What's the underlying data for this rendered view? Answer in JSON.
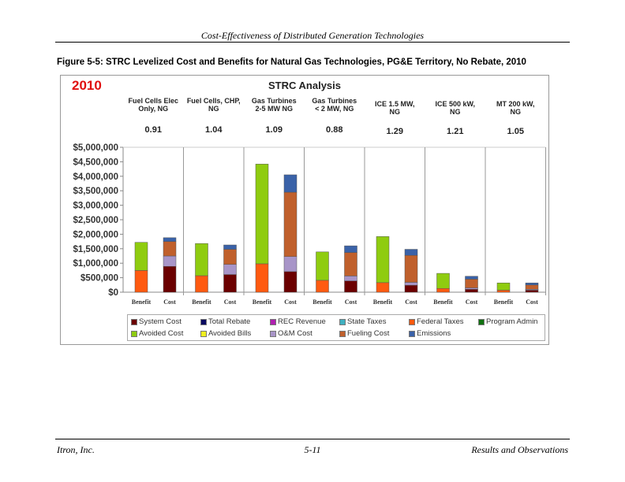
{
  "header": "Cost-Effectiveness of Distributed Generation Technologies",
  "caption": "Figure 5-5:  STRC Levelized Cost and Benefits for Natural Gas Technologies, PG&E Territory, No Rebate, 2010",
  "footer": {
    "left": "Itron, Inc.",
    "center": "5-11",
    "right": "Results and Observations"
  },
  "chart_data": {
    "type": "bar",
    "stacked": true,
    "title": "STRC Analysis",
    "year_label": "2010",
    "ylim": [
      0,
      5000000
    ],
    "yticks": [
      "$0",
      "$500,000",
      "$1,000,000",
      "$1,500,000",
      "$2,000,000",
      "$2,500,000",
      "$3,000,000",
      "$3,500,000",
      "$4,000,000",
      "$4,500,000",
      "$5,000,000"
    ],
    "grid": false,
    "legend_position": "bottom",
    "groups": [
      {
        "label": [
          "Fuel Cells Elec",
          "Only, NG"
        ],
        "ratio": "0.91"
      },
      {
        "label": [
          "Fuel Cells, CHP,",
          "NG"
        ],
        "ratio": "1.04"
      },
      {
        "label": [
          "Gas Turbines",
          "2-5 MW NG"
        ],
        "ratio": "1.09"
      },
      {
        "label": [
          "Gas Turbines",
          "< 2 MW, NG"
        ],
        "ratio": "0.88"
      },
      {
        "label": [
          "ICE 1.5 MW,",
          "NG"
        ],
        "ratio": "1.29"
      },
      {
        "label": [
          "ICE 500 kW,",
          "NG"
        ],
        "ratio": "1.21"
      },
      {
        "label": [
          "MT 200 kW,",
          "NG"
        ],
        "ratio": "1.05"
      }
    ],
    "bar_labels": [
      "Benefit",
      "Cost"
    ],
    "legend": [
      {
        "name": "System Cost",
        "color": "#6b0000"
      },
      {
        "name": "Total Rebate",
        "color": "#0a0a60"
      },
      {
        "name": "REC Revenue",
        "color": "#b020b0"
      },
      {
        "name": "State Taxes",
        "color": "#40b0c0"
      },
      {
        "name": "Federal Taxes",
        "color": "#ff5a10"
      },
      {
        "name": "Program Admin",
        "color": "#107010"
      },
      {
        "name": "Avoided Cost",
        "color": "#8fcc10"
      },
      {
        "name": "Avoided Bills",
        "color": "#f0f020"
      },
      {
        "name": "O&M Cost",
        "color": "#a895c8"
      },
      {
        "name": "Fueling Cost",
        "color": "#c0602c"
      },
      {
        "name": "Emissions",
        "color": "#3a62a8"
      }
    ],
    "benefit_series": [
      {
        "name": "Federal Taxes",
        "values": [
          750000,
          570000,
          980000,
          410000,
          330000,
          130000,
          70000
        ]
      },
      {
        "name": "Avoided Cost",
        "values": [
          970000,
          1110000,
          3440000,
          980000,
          1590000,
          520000,
          250000
        ]
      }
    ],
    "cost_series": [
      {
        "name": "System Cost",
        "values": [
          890000,
          610000,
          710000,
          390000,
          240000,
          100000,
          70000
        ]
      },
      {
        "name": "O&M Cost",
        "values": [
          360000,
          350000,
          520000,
          170000,
          100000,
          50000,
          30000
        ]
      },
      {
        "name": "Fueling Cost",
        "values": [
          500000,
          520000,
          2220000,
          810000,
          930000,
          300000,
          150000
        ]
      },
      {
        "name": "Emissions",
        "values": [
          130000,
          150000,
          600000,
          230000,
          210000,
          100000,
          70000
        ]
      }
    ]
  }
}
